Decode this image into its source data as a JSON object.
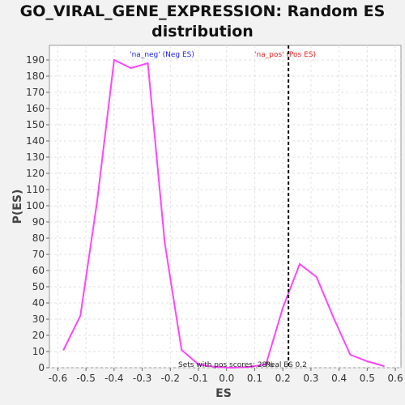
{
  "chart_data": {
    "type": "line",
    "title_line1": "GO_VIRAL_GENE_EXPRESSION: Random ES",
    "title_line2": "distribution",
    "xlabel": "ES",
    "ylabel": "P(ES)",
    "xlim": [
      -0.63,
      0.62
    ],
    "ylim": [
      0,
      199
    ],
    "xticks": [
      -0.6,
      -0.5,
      -0.4,
      -0.3,
      -0.2,
      -0.1,
      0.0,
      0.1,
      0.2,
      0.3,
      0.4,
      0.5,
      0.6
    ],
    "xtick_labels": [
      "-0.6",
      "-0.5",
      "-0.4",
      "-0.3",
      "-0.2",
      "-0.1",
      "0.0",
      "0.1",
      "0.2",
      "0.3",
      "0.4",
      "0.5",
      "0.6"
    ],
    "yticks": [
      0,
      10,
      20,
      30,
      40,
      50,
      60,
      70,
      80,
      90,
      100,
      110,
      120,
      130,
      140,
      150,
      160,
      170,
      180,
      190
    ],
    "ytick_labels": [
      "0",
      "10",
      "20",
      "30",
      "40",
      "50",
      "60",
      "70",
      "80",
      "90",
      "100",
      "110",
      "120",
      "130",
      "140",
      "150",
      "160",
      "170",
      "180",
      "190"
    ],
    "grid": true,
    "series": [
      {
        "color": "#ff44ff",
        "x": [
          -0.58,
          -0.52,
          -0.46,
          -0.4,
          -0.34,
          -0.28,
          -0.22,
          -0.16,
          -0.1,
          -0.04,
          0.02,
          0.08,
          0.14,
          0.2,
          0.26,
          0.32,
          0.38,
          0.44,
          0.5,
          0.56
        ],
        "y": [
          11,
          32,
          103,
          190,
          185,
          188,
          77,
          11,
          2,
          0.5,
          0,
          0.5,
          2,
          37,
          64,
          56,
          31,
          8,
          4,
          1
        ]
      }
    ],
    "real_es": 0.22,
    "real_es_color": "#000000",
    "annotations": {
      "neg_label": "'na_neg' (Neg ES)",
      "neg_color": "#2222ee",
      "pos_label": "'na_pos' (Pos ES)",
      "pos_color": "#ee2222",
      "sets_label": "Sets with pos scores: 28%",
      "real_es_label": "Real ES 0.2"
    }
  }
}
